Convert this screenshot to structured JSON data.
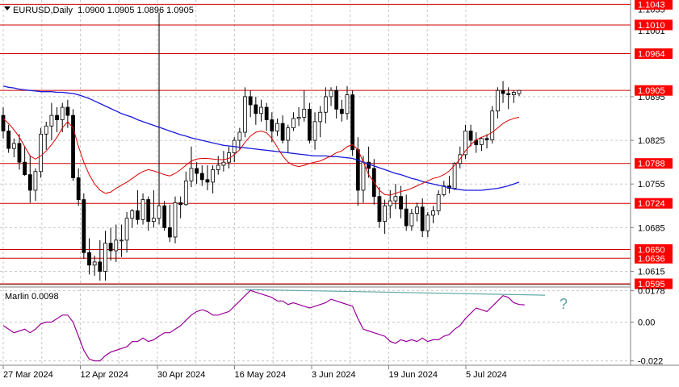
{
  "header": {
    "menu_icon": "triangle-down-icon",
    "symbol_info": "EURUSD,Daily  1.0900 1.0905 1.0896 1.0905"
  },
  "colors": {
    "bull_fill": "#ffffff",
    "bear_fill": "#000000",
    "candle_outline": "#000000",
    "ma_fast": "#e00000",
    "ma_slow": "#1a1adc",
    "level_line": "#d00000",
    "marlin": "#990099",
    "trend_line": "#5fa7a7",
    "grid": "#c8c8c8",
    "price_badge": "#ff0000",
    "question_mark": "#5f9ea0"
  },
  "main_axis": {
    "ticks": [
      "1.0895",
      "1.0825",
      "1.0755",
      "1.0685",
      "1.0615"
    ],
    "level_labels": [
      "1.1043",
      "1.1010",
      "1.0964",
      "1.0905",
      "1.0788",
      "1.0724",
      "1.0650",
      "1.0636",
      "1.0595"
    ],
    "background_labels": [
      "1.1035",
      "1.1001"
    ]
  },
  "indicator": {
    "label": "Marlin 0.0098",
    "ticks": [
      "0.0178",
      "0.00",
      "-0.022"
    ],
    "annotation": "?"
  },
  "time_axis": {
    "labels": [
      "27 Mar 2024",
      "12 Apr 2024",
      "30 Apr 2024",
      "16 May 2024",
      "3 Jun 2024",
      "19 Jun 2024",
      "5 Jul 2024"
    ]
  },
  "chart_data": {
    "type": "candlestick",
    "symbol": "EURUSD",
    "timeframe": "Daily",
    "ylim": [
      1.0595,
      1.105
    ],
    "candles_ohlc": [
      [
        1.0865,
        1.0878,
        1.0828,
        1.084
      ],
      [
        1.084,
        1.085,
        1.0805,
        1.0812
      ],
      [
        1.0812,
        1.0828,
        1.0798,
        1.082
      ],
      [
        1.082,
        1.0835,
        1.0778,
        1.079
      ],
      [
        1.079,
        1.0815,
        1.0768,
        1.077
      ],
      [
        1.077,
        1.08,
        1.0725,
        1.0745
      ],
      [
        1.0745,
        1.078,
        1.0728,
        1.0775
      ],
      [
        1.0775,
        1.0845,
        1.0765,
        1.0835
      ],
      [
        1.0835,
        1.0855,
        1.081,
        1.0848
      ],
      [
        1.0848,
        1.0885,
        1.0825,
        1.0865
      ],
      [
        1.0865,
        1.0878,
        1.0838,
        1.0858
      ],
      [
        1.0858,
        1.0885,
        1.0838,
        1.0878
      ],
      [
        1.0878,
        1.089,
        1.0845,
        1.0865
      ],
      [
        1.0865,
        1.0875,
        1.076,
        1.0765
      ],
      [
        1.0765,
        1.078,
        1.072,
        1.073
      ],
      [
        1.073,
        1.074,
        1.0635,
        1.0645
      ],
      [
        1.0645,
        1.0668,
        1.061,
        1.0625
      ],
      [
        1.0625,
        1.064,
        1.0608,
        1.063
      ],
      [
        1.063,
        1.0665,
        1.06,
        1.0615
      ],
      [
        1.0615,
        1.068,
        1.06,
        1.066
      ],
      [
        1.066,
        1.0685,
        1.0632,
        1.0648
      ],
      [
        1.0648,
        1.069,
        1.063,
        1.0665
      ],
      [
        1.0665,
        1.069,
        1.0638,
        1.0665
      ],
      [
        1.0665,
        1.071,
        1.0645,
        1.07
      ],
      [
        1.07,
        1.0715,
        1.0685,
        1.0712
      ],
      [
        1.0712,
        1.0745,
        1.069,
        1.0698
      ],
      [
        1.0698,
        1.074,
        1.069,
        1.073
      ],
      [
        1.073,
        1.0735,
        1.068,
        1.0695
      ],
      [
        1.0695,
        1.0745,
        1.0685,
        1.07
      ],
      [
        1.07,
        1.103,
        1.069,
        1.072
      ],
      [
        1.072,
        1.0728,
        1.068,
        1.0685
      ],
      [
        1.0685,
        1.0722,
        1.0662,
        1.067
      ],
      [
        1.067,
        1.0735,
        1.066,
        1.0725
      ],
      [
        1.0725,
        1.0735,
        1.07,
        1.0722
      ],
      [
        1.0722,
        1.0775,
        1.072,
        1.076
      ],
      [
        1.076,
        1.0815,
        1.075,
        1.078
      ],
      [
        1.078,
        1.079,
        1.0755,
        1.0772
      ],
      [
        1.0772,
        1.0785,
        1.0752,
        1.0762
      ],
      [
        1.0762,
        1.0785,
        1.0745,
        1.0758
      ],
      [
        1.0758,
        1.0785,
        1.074,
        1.0778
      ],
      [
        1.0778,
        1.08,
        1.077,
        1.0785
      ],
      [
        1.0785,
        1.0808,
        1.0775,
        1.079
      ],
      [
        1.079,
        1.0815,
        1.078,
        1.0805
      ],
      [
        1.0805,
        1.083,
        1.079,
        1.0825
      ],
      [
        1.0825,
        1.0845,
        1.081,
        1.0838
      ],
      [
        1.0838,
        1.091,
        1.083,
        1.0895
      ],
      [
        1.0895,
        1.0905,
        1.0862,
        1.0882
      ],
      [
        1.0882,
        1.0895,
        1.085,
        1.0868
      ],
      [
        1.0868,
        1.089,
        1.0855,
        1.0878
      ],
      [
        1.0878,
        1.0885,
        1.084,
        1.0858
      ],
      [
        1.0858,
        1.087,
        1.0822,
        1.084
      ],
      [
        1.084,
        1.086,
        1.0832,
        1.0852
      ],
      [
        1.0852,
        1.0865,
        1.082,
        1.0825
      ],
      [
        1.0825,
        1.085,
        1.0805,
        1.0845
      ],
      [
        1.0845,
        1.087,
        1.084,
        1.086
      ],
      [
        1.086,
        1.0878,
        1.0848,
        1.0862
      ],
      [
        1.0862,
        1.0905,
        1.0855,
        1.0875
      ],
      [
        1.0875,
        1.0885,
        1.082,
        1.0825
      ],
      [
        1.0825,
        1.087,
        1.081,
        1.0855
      ],
      [
        1.0855,
        1.088,
        1.083,
        1.087
      ],
      [
        1.087,
        1.091,
        1.0852,
        1.0895
      ],
      [
        1.0895,
        1.091,
        1.088,
        1.0905
      ],
      [
        1.0905,
        1.0912,
        1.086,
        1.0875
      ],
      [
        1.0875,
        1.089,
        1.0855,
        1.0868
      ],
      [
        1.0868,
        1.0912,
        1.0858,
        1.0898
      ],
      [
        1.0898,
        1.0905,
        1.08,
        1.081
      ],
      [
        1.081,
        1.083,
        1.072,
        1.0745
      ],
      [
        1.0745,
        1.08,
        1.0725,
        1.079
      ],
      [
        1.079,
        1.0815,
        1.0765,
        1.078
      ],
      [
        1.078,
        1.0795,
        1.0722,
        1.0735
      ],
      [
        1.0735,
        1.075,
        1.0685,
        1.0695
      ],
      [
        1.0695,
        1.073,
        1.0675,
        1.072
      ],
      [
        1.072,
        1.0745,
        1.07,
        1.0728
      ],
      [
        1.0728,
        1.0755,
        1.0715,
        1.0735
      ],
      [
        1.0735,
        1.0752,
        1.07,
        1.0715
      ],
      [
        1.0715,
        1.0738,
        1.068,
        1.0688
      ],
      [
        1.0688,
        1.0715,
        1.068,
        1.0708
      ],
      [
        1.0708,
        1.0725,
        1.0695,
        1.0718
      ],
      [
        1.0718,
        1.0732,
        1.067,
        1.068
      ],
      [
        1.068,
        1.071,
        1.067,
        1.0705
      ],
      [
        1.0705,
        1.072,
        1.0692,
        1.0712
      ],
      [
        1.0712,
        1.0745,
        1.0705,
        1.0738
      ],
      [
        1.0738,
        1.076,
        1.0735,
        1.0752
      ],
      [
        1.0752,
        1.0768,
        1.074,
        1.0748
      ],
      [
        1.0748,
        1.079,
        1.0745,
        1.0788
      ],
      [
        1.0788,
        1.0815,
        1.078,
        1.0802
      ],
      [
        1.0802,
        1.085,
        1.0795,
        1.084
      ],
      [
        1.084,
        1.085,
        1.0815,
        1.0825
      ],
      [
        1.0825,
        1.0838,
        1.0805,
        1.0818
      ],
      [
        1.0818,
        1.083,
        1.0808,
        1.0828
      ],
      [
        1.0828,
        1.0835,
        1.0812,
        1.0826
      ],
      [
        1.0826,
        1.088,
        1.082,
        1.0872
      ],
      [
        1.0872,
        1.091,
        1.086,
        1.0905
      ],
      [
        1.0905,
        1.092,
        1.0885,
        1.09
      ],
      [
        1.09,
        1.091,
        1.0875,
        1.0898
      ],
      [
        1.0898,
        1.0905,
        1.0885,
        1.0902
      ],
      [
        1.09,
        1.0905,
        1.0896,
        1.0905
      ]
    ],
    "ma_fast": [
      1.086,
      1.0852,
      1.0842,
      1.083,
      1.0815,
      1.08,
      1.0795,
      1.08,
      1.0808,
      1.0818,
      1.083,
      1.0845,
      1.0855,
      1.0845,
      1.0815,
      1.079,
      1.077,
      1.0755,
      1.0745,
      1.074,
      1.0742,
      1.0748,
      1.0753,
      1.0758,
      1.0764,
      1.077,
      1.0775,
      1.0778,
      1.0776,
      1.0773,
      1.077,
      1.0768,
      1.0772,
      1.0778,
      1.0785,
      1.0792,
      1.0795,
      1.0796,
      1.0796,
      1.0795,
      1.0794,
      1.0794,
      1.0796,
      1.0802,
      1.081,
      1.0822,
      1.0832,
      1.0838,
      1.084,
      1.0837,
      1.0828,
      1.0814,
      1.08,
      1.079,
      1.0785,
      1.0783,
      1.0785,
      1.0788,
      1.079,
      1.0792,
      1.0796,
      1.08,
      1.0805,
      1.0808,
      1.0815,
      1.0818,
      1.081,
      1.079,
      1.077,
      1.0758,
      1.0745,
      1.0738,
      1.0737,
      1.074,
      1.0743,
      1.0745,
      1.0748,
      1.0752,
      1.0756,
      1.076,
      1.0764,
      1.0766,
      1.077,
      1.0776,
      1.0785,
      1.0795,
      1.0808,
      1.0818,
      1.0826,
      1.083,
      1.0833,
      1.0838,
      1.0845,
      1.0852,
      1.0857,
      1.086,
      1.0862
    ],
    "ma_slow": [
      1.0912,
      1.091,
      1.0909,
      1.0907,
      1.0906,
      1.0905,
      1.0904,
      1.0903,
      1.0903,
      1.0903,
      1.0902,
      1.0902,
      1.0901,
      1.09,
      1.0898,
      1.0895,
      1.0892,
      1.0888,
      1.0884,
      1.088,
      1.0876,
      1.0872,
      1.0868,
      1.0865,
      1.0862,
      1.0858,
      1.0855,
      1.0852,
      1.0849,
      1.0846,
      1.0843,
      1.084,
      1.0837,
      1.0834,
      1.0832,
      1.0829,
      1.0827,
      1.0825,
      1.0823,
      1.0821,
      1.0819,
      1.0817,
      1.0816,
      1.0815,
      1.0814,
      1.0813,
      1.0812,
      1.0811,
      1.081,
      1.0809,
      1.0808,
      1.0807,
      1.0806,
      1.0805,
      1.0804,
      1.0803,
      1.0802,
      1.0801,
      1.08,
      1.08,
      1.08,
      1.0799,
      1.0799,
      1.0798,
      1.0797,
      1.0796,
      1.0793,
      1.079,
      1.0787,
      1.0784,
      1.0781,
      1.0778,
      1.0775,
      1.0772,
      1.077,
      1.0767,
      1.0764,
      1.0762,
      1.0759,
      1.0757,
      1.0755,
      1.0753,
      1.0751,
      1.0749,
      1.0747,
      1.0746,
      1.0745,
      1.0745,
      1.0745,
      1.0745,
      1.0746,
      1.0747,
      1.0748,
      1.075,
      1.0752,
      1.0755,
      1.0758
    ],
    "levels": [
      1.1043,
      1.101,
      1.0964,
      1.0905,
      1.0788,
      1.0724,
      1.065,
      1.0636,
      1.0595
    ],
    "marlin_ylim": [
      -0.024,
      0.019
    ],
    "marlin": [
      -0.002,
      -0.004,
      -0.006,
      -0.005,
      -0.004,
      -0.006,
      -0.004,
      -0.001,
      0.0,
      0.0,
      0.002,
      0.004,
      0.004,
      0.0,
      -0.008,
      -0.016,
      -0.021,
      -0.022,
      -0.022,
      -0.019,
      -0.017,
      -0.016,
      -0.015,
      -0.014,
      -0.011,
      -0.011,
      -0.009,
      -0.011,
      -0.01,
      -0.008,
      -0.006,
      -0.006,
      -0.004,
      -0.002,
      0.001,
      0.004,
      0.006,
      0.007,
      0.006,
      0.004,
      0.004,
      0.005,
      0.006,
      0.009,
      0.012,
      0.015,
      0.018,
      0.017,
      0.016,
      0.015,
      0.014,
      0.012,
      0.012,
      0.01,
      0.011,
      0.01,
      0.009,
      0.008,
      0.009,
      0.01,
      0.011,
      0.013,
      0.012,
      0.011,
      0.01,
      0.009,
      0.002,
      -0.004,
      -0.005,
      -0.006,
      -0.007,
      -0.008,
      -0.011,
      -0.012,
      -0.01,
      -0.011,
      -0.01,
      -0.011,
      -0.009,
      -0.011,
      -0.01,
      -0.01,
      -0.008,
      -0.007,
      -0.004,
      -0.002,
      0.002,
      0.005,
      0.008,
      0.007,
      0.006,
      0.009,
      0.012,
      0.015,
      0.014,
      0.011,
      0.01,
      0.0098
    ],
    "marlin_trendline": [
      [
        45,
        0.0185
      ],
      [
        96,
        0.0153
      ]
    ]
  }
}
